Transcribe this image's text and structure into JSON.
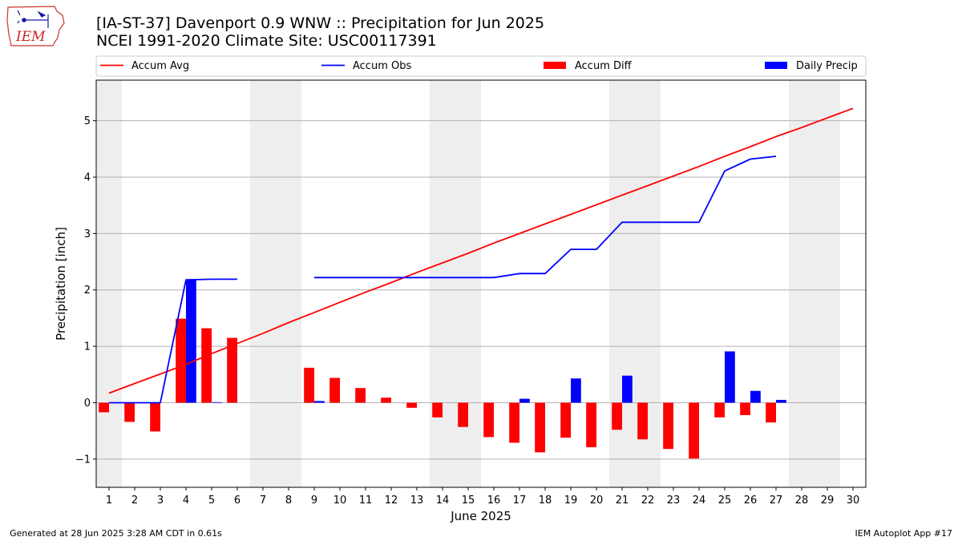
{
  "header": {
    "title": "[IA-ST-37] Davenport 0.9 WNW :: Precipitation for Jun 2025",
    "subtitle": "NCEI 1991-2020 Climate Site: USC00117391",
    "logo_text": "IEM"
  },
  "footer": {
    "left": "Generated at 28 Jun 2025 3:28 AM CDT in 0.61s",
    "right": "IEM Autoplot App #17"
  },
  "chart_data": {
    "type": "bar",
    "xlabel": "June 2025",
    "ylabel": "Precipitation [inch]",
    "xlim": [
      0.5,
      30.5
    ],
    "ylim": [
      -1.5,
      5.72
    ],
    "x_ticks": [
      1,
      2,
      3,
      4,
      5,
      6,
      7,
      8,
      9,
      10,
      11,
      12,
      13,
      14,
      15,
      16,
      17,
      18,
      19,
      20,
      21,
      22,
      23,
      24,
      25,
      26,
      27,
      28,
      29,
      30
    ],
    "y_ticks": [
      -1,
      0,
      1,
      2,
      3,
      4,
      5
    ],
    "y_tick_labels": [
      "−1",
      "0",
      "1",
      "2",
      "3",
      "4",
      "5"
    ],
    "grid": "horizontal",
    "legend_placement": "top",
    "weekend_shading_days": [
      1,
      7,
      8,
      14,
      15,
      21,
      22,
      28,
      29
    ],
    "colors": {
      "accum_avg": "#ff0000",
      "accum_obs": "#0000ff",
      "accum_diff": "#ff0000",
      "daily_precip": "#0000ff",
      "weekend_shade": "#eeeeee",
      "grid": "#b0b0b0"
    },
    "legend": [
      {
        "label": "Accum Avg",
        "kind": "line",
        "color": "#ff0000"
      },
      {
        "label": "Accum Obs",
        "kind": "line",
        "color": "#0000ff"
      },
      {
        "label": "Accum Diff",
        "kind": "bar",
        "color": "#ff0000"
      },
      {
        "label": "Daily Precip",
        "kind": "bar",
        "color": "#0000ff"
      }
    ],
    "series": [
      {
        "name": "Accum Avg",
        "type": "line",
        "x": [
          1,
          2,
          3,
          4,
          5,
          6,
          7,
          8,
          9,
          10,
          11,
          12,
          13,
          14,
          15,
          16,
          17,
          18,
          19,
          20,
          21,
          22,
          23,
          24,
          25,
          26,
          27,
          28,
          29,
          30
        ],
        "values": [
          0.17,
          0.34,
          0.51,
          0.68,
          0.87,
          1.05,
          1.23,
          1.42,
          1.6,
          1.78,
          1.96,
          2.13,
          2.31,
          2.48,
          2.65,
          2.83,
          3.0,
          3.17,
          3.34,
          3.51,
          3.68,
          3.85,
          4.02,
          4.19,
          4.37,
          4.54,
          4.72,
          4.88,
          5.05,
          5.22
        ]
      },
      {
        "name": "Accum Obs",
        "type": "line",
        "x": [
          1,
          2,
          3,
          4,
          5,
          6,
          7,
          8,
          9,
          10,
          11,
          12,
          13,
          14,
          15,
          16,
          17,
          18,
          19,
          20,
          21,
          22,
          23,
          24,
          25,
          26,
          27
        ],
        "values": [
          0.0,
          0.0,
          0.0,
          2.18,
          2.19,
          2.19,
          null,
          null,
          2.22,
          2.22,
          2.22,
          2.22,
          2.22,
          2.22,
          2.22,
          2.22,
          2.29,
          2.29,
          2.72,
          2.72,
          3.2,
          3.2,
          3.2,
          3.2,
          4.11,
          4.32,
          4.37
        ]
      },
      {
        "name": "Accum Diff",
        "type": "bar",
        "x": [
          1,
          2,
          3,
          4,
          5,
          6,
          9,
          10,
          11,
          12,
          13,
          14,
          15,
          16,
          17,
          18,
          19,
          20,
          21,
          22,
          23,
          24,
          25,
          26,
          27
        ],
        "values": [
          -0.17,
          -0.34,
          -0.51,
          1.49,
          1.32,
          1.15,
          0.62,
          0.44,
          0.26,
          0.09,
          -0.09,
          -0.26,
          -0.43,
          -0.61,
          -0.71,
          -0.88,
          -0.62,
          -0.79,
          -0.48,
          -0.65,
          -0.82,
          -0.99,
          -0.26,
          -0.22,
          -0.35
        ]
      },
      {
        "name": "Daily Precip",
        "type": "bar",
        "x": [
          1,
          2,
          3,
          4,
          5,
          6,
          9,
          10,
          11,
          12,
          13,
          14,
          15,
          16,
          17,
          18,
          19,
          20,
          21,
          22,
          23,
          24,
          25,
          26,
          27
        ],
        "values": [
          0.0,
          0.0,
          0.0,
          2.18,
          0.01,
          0.0,
          0.03,
          0.0,
          0.0,
          0.0,
          0.0,
          0.0,
          0.0,
          0.0,
          0.07,
          0.0,
          0.43,
          0.0,
          0.48,
          0.0,
          0.0,
          0.0,
          0.91,
          0.21,
          0.05
        ]
      }
    ]
  }
}
